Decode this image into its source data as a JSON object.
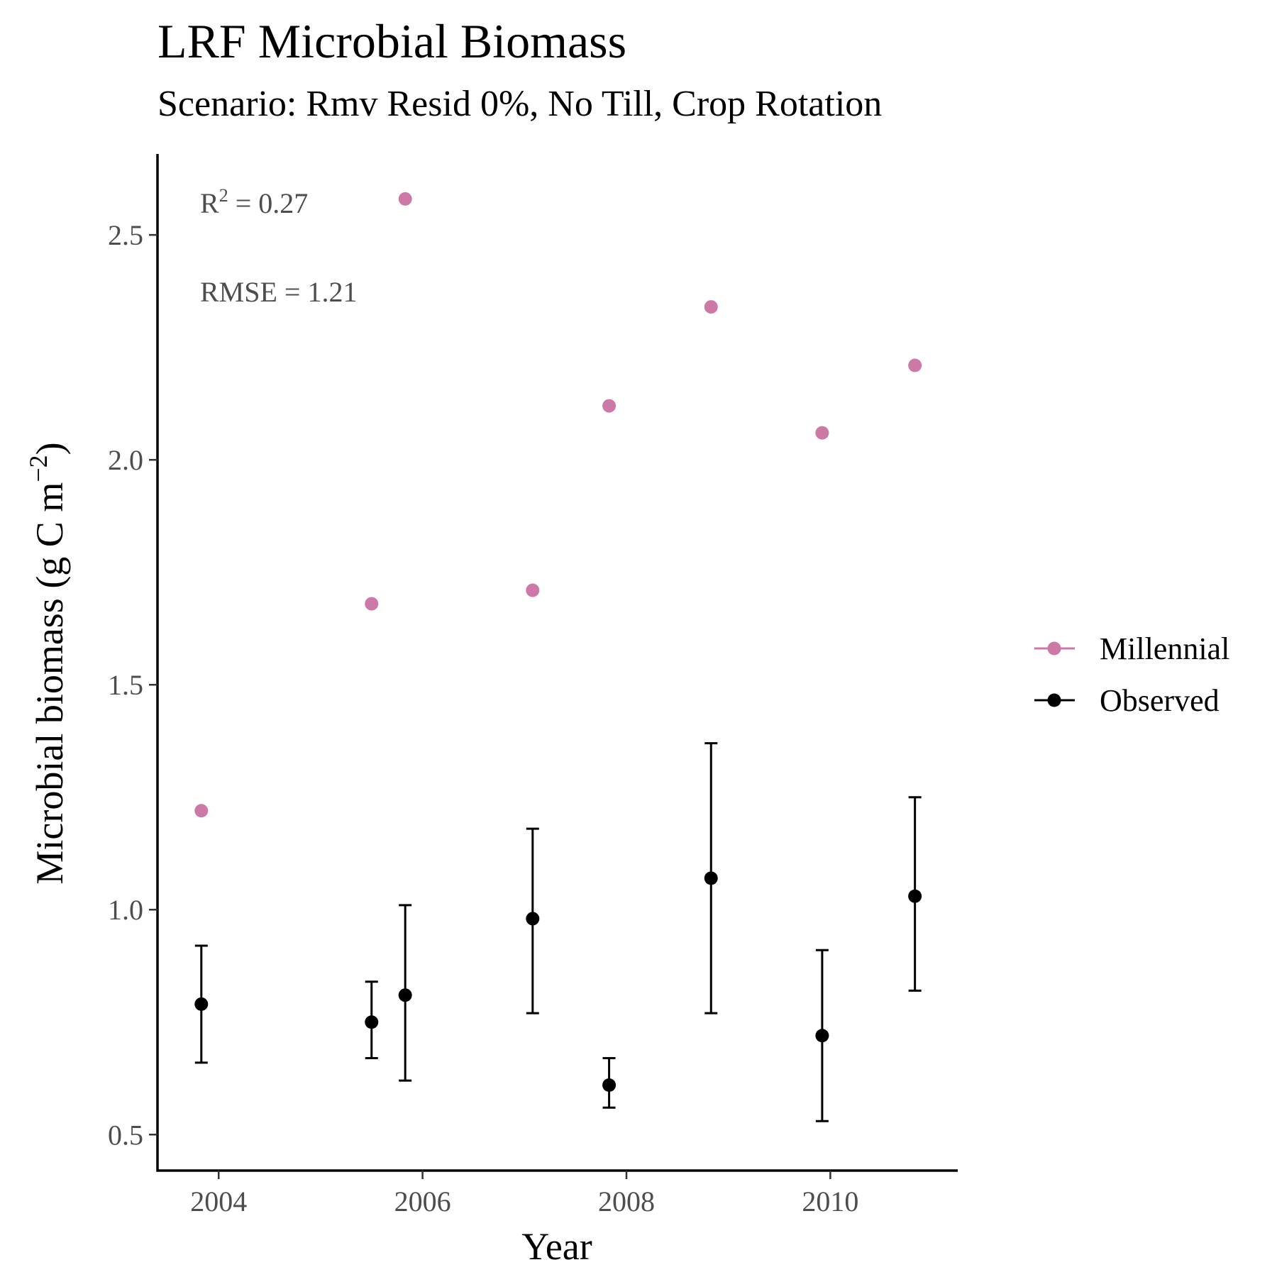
{
  "chart_data": {
    "type": "scatter",
    "title": "LRF Microbial Biomass",
    "subtitle": "Scenario: Rmv Resid 0%, No Till, Crop Rotation",
    "xlabel": "Year",
    "ylabel": "Microbial biomass (g C m",
    "ylabel_sup": "−2",
    "ylabel_close": ")",
    "xlim": [
      2003.4,
      2011.25
    ],
    "ylim": [
      0.42,
      2.68
    ],
    "xticks": [
      2004,
      2006,
      2008,
      2010
    ],
    "xtick_labels": [
      "2004",
      "2006",
      "2008",
      "2010"
    ],
    "yticks": [
      0.5,
      1.0,
      1.5,
      2.0,
      2.5
    ],
    "ytick_labels": [
      "0.5",
      "1.0",
      "1.5",
      "2.0",
      "2.5"
    ],
    "grid": false,
    "legend_position": "right",
    "annotations": {
      "r2_prefix": "R",
      "r2_sup": "2",
      "r2_value": " = 0.27",
      "rmse": "RMSE = 1.21"
    },
    "series": [
      {
        "name": "Millennial",
        "color": "#cc79a7",
        "x": [
          2003.83,
          2005.5,
          2005.83,
          2007.08,
          2007.83,
          2008.83,
          2009.92,
          2010.83
        ],
        "y": [
          1.22,
          1.68,
          2.58,
          1.71,
          2.12,
          2.34,
          2.06,
          2.21
        ]
      },
      {
        "name": "Observed",
        "color": "#000000",
        "x": [
          2003.83,
          2005.5,
          2005.83,
          2007.08,
          2007.83,
          2008.83,
          2009.92,
          2010.83
        ],
        "y": [
          0.79,
          0.75,
          0.81,
          0.98,
          0.61,
          1.07,
          0.72,
          1.03
        ],
        "error_low": [
          0.66,
          0.67,
          0.62,
          0.77,
          0.56,
          0.77,
          0.53,
          0.82
        ],
        "error_high": [
          0.92,
          0.84,
          1.01,
          1.18,
          0.67,
          1.37,
          0.91,
          1.25
        ]
      }
    ]
  }
}
